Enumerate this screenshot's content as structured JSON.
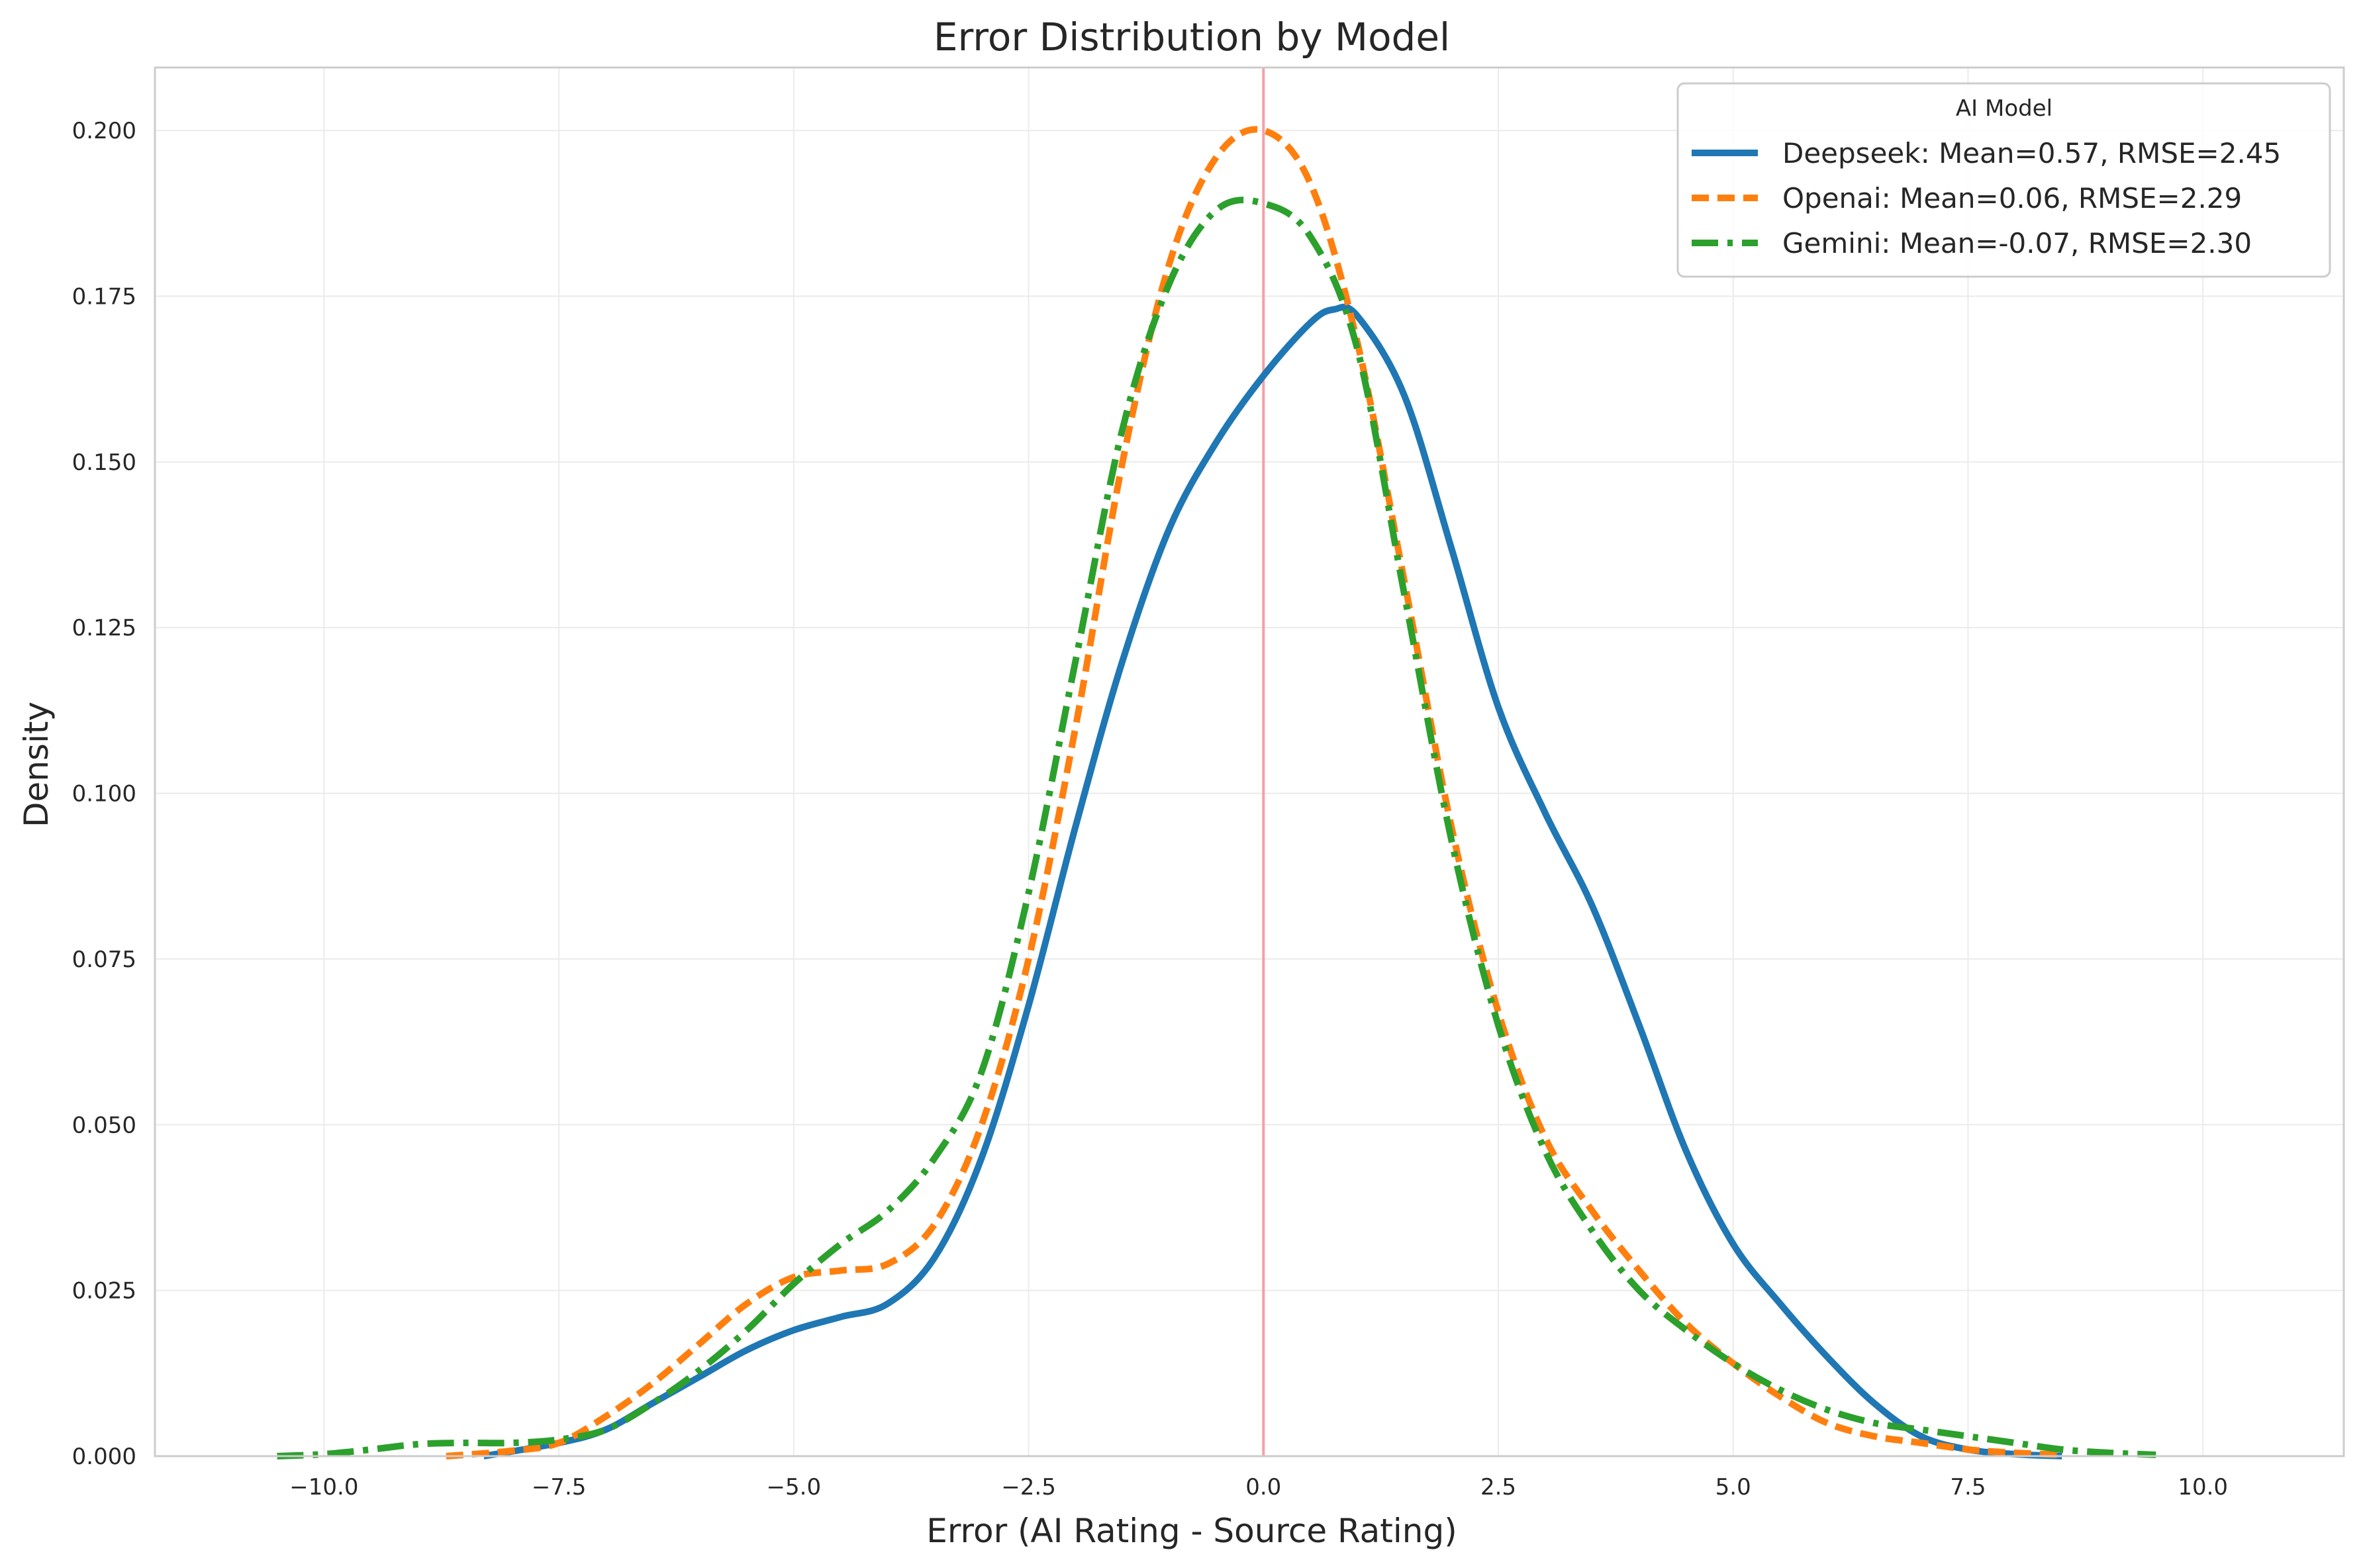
{
  "chart_data": {
    "type": "line",
    "title": "Error Distribution by Model",
    "xlabel": "Error (AI Rating - Source Rating)",
    "ylabel": "Density",
    "xlim": [
      -11.8,
      11.5
    ],
    "ylim": [
      0,
      0.2095
    ],
    "grid": true,
    "legend_position": "top-right",
    "legend_title": "AI Model",
    "reference_line": {
      "x": 0,
      "color": "#f4a0a6"
    },
    "xticks": [
      -10,
      -7.5,
      -5,
      -2.5,
      0,
      2.5,
      5,
      7.5,
      10
    ],
    "xtick_labels": [
      "−10.0",
      "−7.5",
      "−5.0",
      "−2.5",
      "0.0",
      "2.5",
      "5.0",
      "7.5",
      "10.0"
    ],
    "yticks": [
      0,
      0.025,
      0.05,
      0.075,
      0.1,
      0.125,
      0.15,
      0.175,
      0.2
    ],
    "ytick_labels": [
      "0.000",
      "0.025",
      "0.050",
      "0.075",
      "0.100",
      "0.125",
      "0.150",
      "0.175",
      "0.200"
    ],
    "series": [
      {
        "name": "Deepseek: Mean=0.57, RMSE=2.45",
        "color": "#1f77b4",
        "style": "solid",
        "x": [
          -8.3,
          -7.5,
          -7.0,
          -6.5,
          -6.0,
          -5.5,
          -5.0,
          -4.5,
          -4.0,
          -3.5,
          -3.0,
          -2.5,
          -2.0,
          -1.5,
          -1.0,
          -0.5,
          0.0,
          0.5,
          0.75,
          1.0,
          1.5,
          2.0,
          2.5,
          3.0,
          3.5,
          4.0,
          4.5,
          5.0,
          5.5,
          6.0,
          6.5,
          7.0,
          7.5,
          8.0,
          8.5
        ],
        "y": [
          0.0,
          0.002,
          0.004,
          0.008,
          0.012,
          0.016,
          0.019,
          0.021,
          0.023,
          0.03,
          0.045,
          0.068,
          0.095,
          0.12,
          0.14,
          0.153,
          0.163,
          0.171,
          0.173,
          0.172,
          0.16,
          0.137,
          0.113,
          0.097,
          0.083,
          0.065,
          0.046,
          0.032,
          0.023,
          0.015,
          0.008,
          0.003,
          0.001,
          0.0003,
          0.0
        ]
      },
      {
        "name": "Openai: Mean=0.06, RMSE=2.29",
        "color": "#ff7f0e",
        "style": "dashed",
        "x": [
          -8.7,
          -8.0,
          -7.5,
          -7.0,
          -6.5,
          -6.0,
          -5.5,
          -5.0,
          -4.5,
          -4.0,
          -3.5,
          -3.0,
          -2.5,
          -2.0,
          -1.5,
          -1.0,
          -0.5,
          0.0,
          0.5,
          1.0,
          1.5,
          2.0,
          2.5,
          3.0,
          3.5,
          4.0,
          4.5,
          5.0,
          5.5,
          6.0,
          6.5,
          7.0,
          7.5,
          8.0,
          8.5
        ],
        "y": [
          0.0,
          0.0008,
          0.002,
          0.006,
          0.011,
          0.017,
          0.023,
          0.027,
          0.028,
          0.029,
          0.035,
          0.05,
          0.075,
          0.11,
          0.15,
          0.18,
          0.196,
          0.2,
          0.192,
          0.168,
          0.132,
          0.095,
          0.067,
          0.048,
          0.037,
          0.028,
          0.02,
          0.014,
          0.009,
          0.005,
          0.003,
          0.002,
          0.001,
          0.0005,
          0.0002
        ]
      },
      {
        "name": "Gemini: Mean=-0.07, RMSE=2.30",
        "color": "#2ca02c",
        "style": "dashdot",
        "x": [
          -10.5,
          -10.0,
          -9.5,
          -9.0,
          -8.5,
          -8.0,
          -7.5,
          -7.0,
          -6.5,
          -6.0,
          -5.5,
          -5.0,
          -4.5,
          -4.0,
          -3.5,
          -3.0,
          -2.5,
          -2.0,
          -1.5,
          -1.0,
          -0.5,
          0.0,
          0.5,
          1.0,
          1.5,
          2.0,
          2.5,
          3.0,
          3.5,
          4.0,
          4.5,
          5.0,
          5.5,
          6.0,
          6.5,
          7.0,
          7.5,
          8.0,
          8.5,
          9.0,
          9.5
        ],
        "y": [
          0.0,
          0.0003,
          0.001,
          0.0018,
          0.002,
          0.002,
          0.0025,
          0.004,
          0.008,
          0.013,
          0.019,
          0.026,
          0.032,
          0.037,
          0.045,
          0.058,
          0.085,
          0.12,
          0.155,
          0.177,
          0.188,
          0.189,
          0.184,
          0.167,
          0.13,
          0.093,
          0.065,
          0.046,
          0.034,
          0.025,
          0.019,
          0.014,
          0.01,
          0.007,
          0.005,
          0.004,
          0.003,
          0.002,
          0.001,
          0.0005,
          0.0002
        ]
      }
    ]
  }
}
